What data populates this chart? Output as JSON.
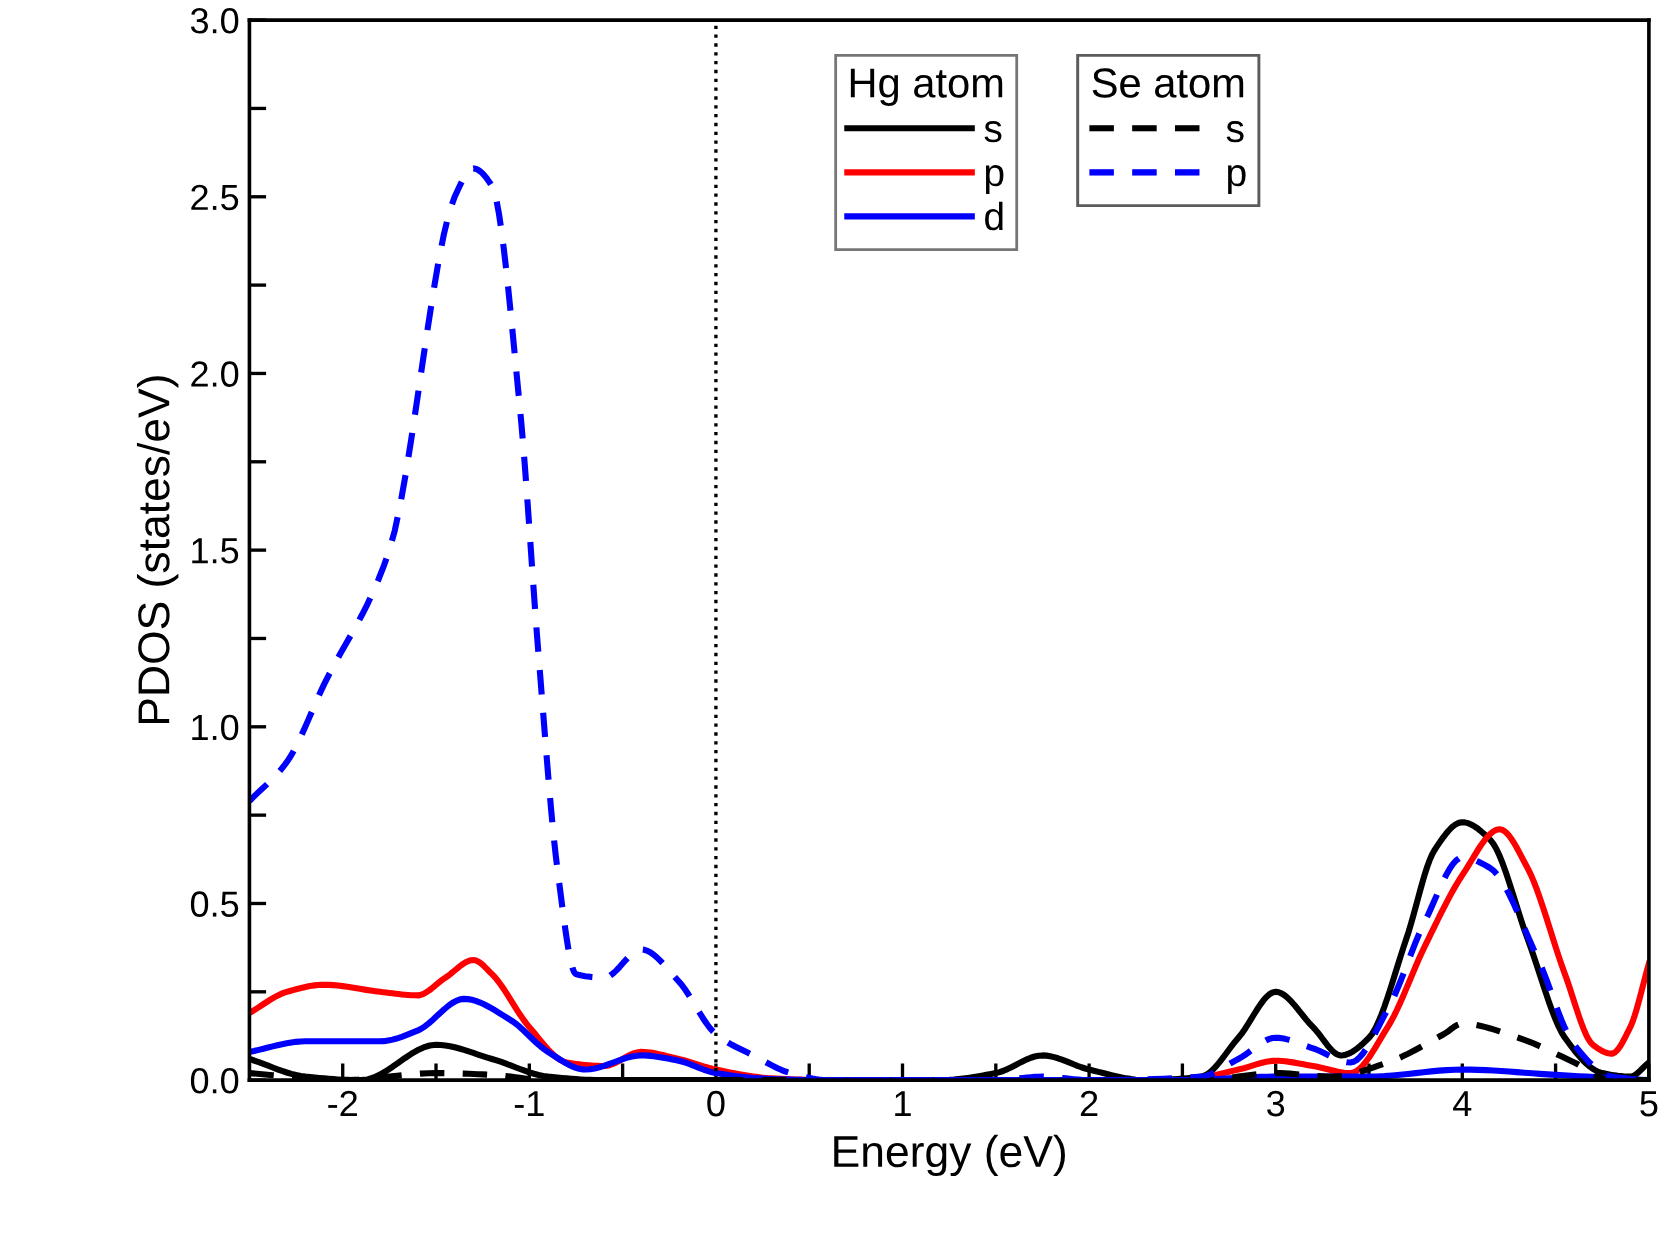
{
  "chart_data": {
    "type": "line",
    "xlabel": "Energy (eV)",
    "ylabel": "PDOS (states/eV)",
    "xlim": [
      -2.5,
      5
    ],
    "ylim": [
      0,
      3
    ],
    "xticks": [
      -2,
      {
        "value": -1.5,
        "label": null
      },
      -1,
      {
        "value": -0.5,
        "label": null
      },
      0,
      {
        "value": 0.5,
        "label": null
      },
      1,
      {
        "value": 1.5,
        "label": null
      },
      2,
      {
        "value": 2.5,
        "label": null
      },
      3,
      {
        "value": 3.5,
        "label": null
      },
      4,
      {
        "value": 4.5,
        "label": null
      },
      5
    ],
    "yticks": [
      {
        "value": 0,
        "label": "0.0"
      },
      {
        "value": 0.25,
        "label": null
      },
      0.5,
      {
        "value": 0.75,
        "label": null
      },
      {
        "value": 1,
        "label": "1.0"
      },
      {
        "value": 1.25,
        "label": null
      },
      1.5,
      {
        "value": 1.75,
        "label": null
      },
      {
        "value": 2,
        "label": "2.0"
      },
      {
        "value": 2.25,
        "label": null
      },
      2.5,
      {
        "value": 2.75,
        "label": null
      },
      {
        "value": 3,
        "label": "3.0"
      }
    ],
    "grid": false,
    "legend": "top",
    "marker": "none",
    "annotations": [
      "Hg atom",
      "Se atom"
    ],
    "ref_lines": [
      {
        "axis": "x",
        "value": 0,
        "label": null,
        "color": "#000000",
        "line_style": "dotted"
      }
    ],
    "series": [
      {
        "name": "s",
        "color": "#000000",
        "line_style": "solid",
        "x": [
          -2.5,
          -2.2,
          -1.9,
          -1.5,
          -1.2,
          -0.9,
          -0.6,
          1.2,
          1.5,
          1.75,
          2.0,
          2.3,
          2.6,
          2.8,
          3.0,
          3.2,
          3.35,
          3.5,
          3.7,
          3.85,
          4.0,
          4.15,
          4.35,
          4.55,
          4.75,
          4.9,
          5.0
        ],
        "values": [
          0.06,
          0.01,
          0.0,
          0.1,
          0.06,
          0.01,
          0.0,
          0.0,
          0.02,
          0.07,
          0.03,
          0.0,
          0.01,
          0.12,
          0.25,
          0.15,
          0.07,
          0.12,
          0.4,
          0.65,
          0.73,
          0.68,
          0.4,
          0.12,
          0.02,
          0.01,
          0.05
        ]
      },
      {
        "name": "p",
        "color": "#ff0000",
        "line_style": "solid",
        "x": [
          -2.5,
          -2.3,
          -2.1,
          -1.8,
          -1.6,
          -1.45,
          -1.3,
          -1.2,
          -1.0,
          -0.8,
          -0.6,
          -0.4,
          -0.2,
          0,
          0.3,
          0.6,
          2.5,
          2.8,
          3.0,
          3.2,
          3.4,
          3.6,
          3.8,
          4.0,
          4.2,
          4.35,
          4.55,
          4.7,
          4.8,
          4.9,
          5.0
        ],
        "values": [
          0.19,
          0.25,
          0.27,
          0.25,
          0.24,
          0.29,
          0.34,
          0.3,
          0.15,
          0.05,
          0.04,
          0.08,
          0.06,
          0.03,
          0.005,
          0.0,
          0.0,
          0.03,
          0.055,
          0.04,
          0.02,
          0.15,
          0.38,
          0.58,
          0.71,
          0.6,
          0.3,
          0.1,
          0.075,
          0.15,
          0.33
        ]
      },
      {
        "name": "d",
        "color": "#0000ff",
        "line_style": "solid",
        "x": [
          -2.5,
          -2.2,
          -1.8,
          -1.6,
          -1.35,
          -1.1,
          -0.9,
          -0.7,
          -0.4,
          -0.2,
          0,
          0.3,
          0.6,
          2.5,
          3.0,
          3.5,
          4.0,
          4.5,
          5.0
        ],
        "values": [
          0.08,
          0.11,
          0.11,
          0.14,
          0.23,
          0.17,
          0.08,
          0.03,
          0.07,
          0.055,
          0.02,
          0.003,
          0.0,
          0.0,
          0.01,
          0.01,
          0.03,
          0.015,
          0.0
        ]
      },
      {
        "name": "s",
        "color": "#000000",
        "line_style": "dashed",
        "x": [
          -2.5,
          -2.0,
          -1.5,
          -1.2,
          -0.9,
          2.6,
          3.0,
          3.3,
          3.6,
          3.9,
          4.0,
          4.3,
          4.6,
          4.8,
          5.0
        ],
        "values": [
          0.02,
          0.0,
          0.02,
          0.015,
          0.0,
          0.0,
          0.02,
          0.01,
          0.05,
          0.13,
          0.16,
          0.12,
          0.05,
          0.0,
          0.0
        ]
      },
      {
        "name": "p",
        "color": "#0000ff",
        "line_style": "dashed",
        "x": [
          -2.5,
          -2.3,
          -2.1,
          -1.75,
          -1.4,
          -1.3,
          -1.2,
          -1.05,
          -0.95,
          -0.85,
          -0.75,
          -0.6,
          -0.4,
          -0.2,
          0,
          0.2,
          0.4,
          0.6,
          1.5,
          1.75,
          2.0,
          2.6,
          2.8,
          3.0,
          3.2,
          3.4,
          3.6,
          3.8,
          4.0,
          4.15,
          4.4,
          4.6,
          4.8,
          5.0
        ],
        "values": [
          0.79,
          0.9,
          1.12,
          1.5,
          2.5,
          2.58,
          2.53,
          1.9,
          1.2,
          0.6,
          0.3,
          0.29,
          0.37,
          0.28,
          0.13,
          0.07,
          0.02,
          0.0,
          0.0,
          0.01,
          0.0,
          0.01,
          0.06,
          0.12,
          0.09,
          0.05,
          0.2,
          0.45,
          0.63,
          0.6,
          0.35,
          0.1,
          0.01,
          0.0
        ]
      }
    ]
  }
}
